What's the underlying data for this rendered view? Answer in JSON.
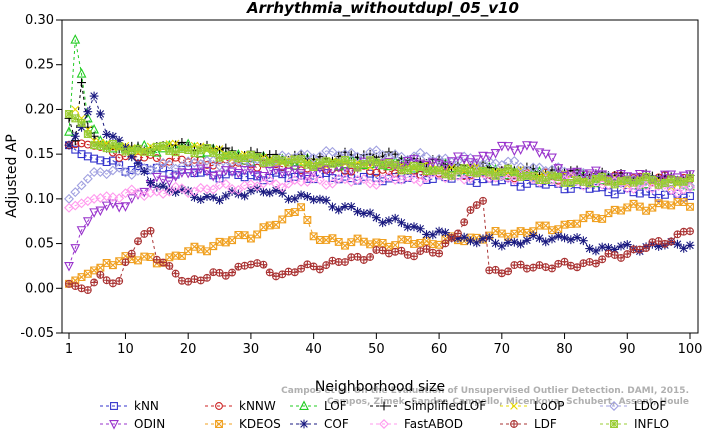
{
  "chart_data": {
    "type": "line",
    "title": "Arrhythmia_withoutdupl_05_v10",
    "xlabel": "Neighborhood size",
    "ylabel": "Adjusted AP",
    "xlim": [
      1,
      100
    ],
    "ylim": [
      -0.05,
      0.3
    ],
    "xticks": [
      "1",
      "10",
      "20",
      "30",
      "40",
      "50",
      "60",
      "70",
      "80",
      "90",
      "100"
    ],
    "yticks": [
      "-0.05",
      "0.00",
      "0.05",
      "0.10",
      "0.15",
      "0.20",
      "0.25",
      "0.30"
    ],
    "grid": false,
    "legend_position": "bottom",
    "watermark": [
      "Campos et al. On the Evaluation of Unsupervised Outlier Detection. DAMI, 2015.",
      "Campos, Zimek, Sander, Campello, Micenkova, Schubert, Assent, Houle"
    ],
    "series": [
      {
        "name": "kNN",
        "color": "#3333cc",
        "marker": "square",
        "dash": true,
        "points": [
          [
            1,
            0.16
          ],
          [
            3,
            0.15
          ],
          [
            5,
            0.145
          ],
          [
            10,
            0.135
          ],
          [
            20,
            0.13
          ],
          [
            30,
            0.125
          ],
          [
            40,
            0.125
          ],
          [
            50,
            0.123
          ],
          [
            60,
            0.125
          ],
          [
            70,
            0.12
          ],
          [
            80,
            0.115
          ],
          [
            90,
            0.108
          ],
          [
            100,
            0.103
          ]
        ]
      },
      {
        "name": "kNNW",
        "color": "#cc2222",
        "marker": "circle",
        "dash": true,
        "points": [
          [
            1,
            0.16
          ],
          [
            3,
            0.162
          ],
          [
            6,
            0.158
          ],
          [
            10,
            0.148
          ],
          [
            20,
            0.142
          ],
          [
            30,
            0.14
          ],
          [
            40,
            0.135
          ],
          [
            50,
            0.132
          ],
          [
            60,
            0.13
          ],
          [
            70,
            0.128
          ],
          [
            80,
            0.125
          ],
          [
            90,
            0.123
          ],
          [
            100,
            0.122
          ]
        ]
      },
      {
        "name": "LOF",
        "color": "#22cc22",
        "marker": "triangle-up",
        "dash": true,
        "points": [
          [
            1,
            0.175
          ],
          [
            2,
            0.278
          ],
          [
            3,
            0.24
          ],
          [
            4,
            0.19
          ],
          [
            6,
            0.165
          ],
          [
            10,
            0.155
          ],
          [
            20,
            0.158
          ],
          [
            30,
            0.145
          ],
          [
            40,
            0.14
          ],
          [
            50,
            0.14
          ],
          [
            60,
            0.135
          ],
          [
            70,
            0.13
          ],
          [
            80,
            0.125
          ],
          [
            90,
            0.12
          ],
          [
            100,
            0.118
          ]
        ]
      },
      {
        "name": "SimplifiedLOF",
        "color": "#000000",
        "marker": "plus",
        "dash": true,
        "points": [
          [
            1,
            0.19
          ],
          [
            2,
            0.165
          ],
          [
            3,
            0.23
          ],
          [
            4,
            0.18
          ],
          [
            6,
            0.16
          ],
          [
            10,
            0.155
          ],
          [
            20,
            0.16
          ],
          [
            30,
            0.15
          ],
          [
            40,
            0.145
          ],
          [
            50,
            0.15
          ],
          [
            60,
            0.14
          ],
          [
            70,
            0.133
          ],
          [
            80,
            0.13
          ],
          [
            90,
            0.125
          ],
          [
            100,
            0.123
          ]
        ]
      },
      {
        "name": "LoOP",
        "color": "#e6d800",
        "marker": "x",
        "dash": true,
        "points": [
          [
            1,
            0.195
          ],
          [
            2,
            0.2
          ],
          [
            3,
            0.19
          ],
          [
            5,
            0.165
          ],
          [
            10,
            0.155
          ],
          [
            20,
            0.16
          ],
          [
            30,
            0.145
          ],
          [
            40,
            0.14
          ],
          [
            50,
            0.14
          ],
          [
            60,
            0.135
          ],
          [
            70,
            0.13
          ],
          [
            80,
            0.125
          ],
          [
            90,
            0.12
          ],
          [
            100,
            0.117
          ]
        ]
      },
      {
        "name": "LDOF",
        "color": "#a0a0e0",
        "marker": "diamond",
        "dash": true,
        "points": [
          [
            1,
            0.1
          ],
          [
            3,
            0.115
          ],
          [
            5,
            0.13
          ],
          [
            10,
            0.13
          ],
          [
            20,
            0.14
          ],
          [
            30,
            0.14
          ],
          [
            40,
            0.15
          ],
          [
            50,
            0.15
          ],
          [
            60,
            0.145
          ],
          [
            70,
            0.14
          ],
          [
            80,
            0.13
          ],
          [
            90,
            0.12
          ],
          [
            100,
            0.115
          ]
        ]
      },
      {
        "name": "ODIN",
        "color": "#9933cc",
        "marker": "triangle-down",
        "dash": true,
        "points": [
          [
            1,
            0.025
          ],
          [
            3,
            0.065
          ],
          [
            5,
            0.085
          ],
          [
            10,
            0.095
          ],
          [
            15,
            0.12
          ],
          [
            20,
            0.13
          ],
          [
            30,
            0.13
          ],
          [
            40,
            0.13
          ],
          [
            50,
            0.14
          ],
          [
            60,
            0.14
          ],
          [
            66,
            0.145
          ],
          [
            70,
            0.155
          ],
          [
            75,
            0.16
          ],
          [
            80,
            0.13
          ],
          [
            90,
            0.125
          ],
          [
            100,
            0.125
          ]
        ]
      },
      {
        "name": "KDEOS",
        "color": "#f0a020",
        "marker": "square-x",
        "dash": true,
        "points": [
          [
            1,
            0.005
          ],
          [
            5,
            0.02
          ],
          [
            10,
            0.035
          ],
          [
            15,
            0.03
          ],
          [
            20,
            0.04
          ],
          [
            25,
            0.05
          ],
          [
            30,
            0.06
          ],
          [
            35,
            0.075
          ],
          [
            38,
            0.095
          ],
          [
            40,
            0.055
          ],
          [
            50,
            0.05
          ],
          [
            60,
            0.052
          ],
          [
            70,
            0.06
          ],
          [
            80,
            0.07
          ],
          [
            90,
            0.09
          ],
          [
            100,
            0.095
          ]
        ]
      },
      {
        "name": "COF",
        "color": "#1a1a80",
        "marker": "star",
        "dash": true,
        "points": [
          [
            1,
            0.16
          ],
          [
            3,
            0.18
          ],
          [
            5,
            0.215
          ],
          [
            7,
            0.175
          ],
          [
            10,
            0.16
          ],
          [
            12,
            0.135
          ],
          [
            15,
            0.115
          ],
          [
            20,
            0.105
          ],
          [
            25,
            0.1
          ],
          [
            30,
            0.11
          ],
          [
            35,
            0.105
          ],
          [
            40,
            0.1
          ],
          [
            45,
            0.09
          ],
          [
            50,
            0.08
          ],
          [
            55,
            0.07
          ],
          [
            60,
            0.06
          ],
          [
            70,
            0.05
          ],
          [
            80,
            0.058
          ],
          [
            85,
            0.045
          ],
          [
            90,
            0.045
          ],
          [
            100,
            0.05
          ]
        ]
      },
      {
        "name": "FastABOD",
        "color": "#ff99ee",
        "marker": "diamond",
        "dash": true,
        "points": [
          [
            1,
            0.09
          ],
          [
            3,
            0.095
          ],
          [
            5,
            0.1
          ],
          [
            10,
            0.105
          ],
          [
            20,
            0.11
          ],
          [
            30,
            0.115
          ],
          [
            40,
            0.12
          ],
          [
            50,
            0.12
          ],
          [
            60,
            0.125
          ],
          [
            70,
            0.125
          ],
          [
            80,
            0.12
          ],
          [
            90,
            0.115
          ],
          [
            100,
            0.11
          ]
        ]
      },
      {
        "name": "LDF",
        "color": "#aa3333",
        "marker": "circle-plus",
        "dash": true,
        "points": [
          [
            1,
            0.005
          ],
          [
            3,
            0.0
          ],
          [
            4,
            -0.002
          ],
          [
            6,
            0.015
          ],
          [
            9,
            0.005
          ],
          [
            10,
            0.025
          ],
          [
            12,
            0.055
          ],
          [
            14,
            0.065
          ],
          [
            15,
            0.035
          ],
          [
            17,
            0.02
          ],
          [
            20,
            0.008
          ],
          [
            25,
            0.015
          ],
          [
            30,
            0.028
          ],
          [
            35,
            0.015
          ],
          [
            40,
            0.025
          ],
          [
            45,
            0.03
          ],
          [
            50,
            0.04
          ],
          [
            55,
            0.04
          ],
          [
            60,
            0.04
          ],
          [
            67,
            0.1
          ],
          [
            68,
            0.02
          ],
          [
            70,
            0.02
          ],
          [
            75,
            0.025
          ],
          [
            80,
            0.025
          ],
          [
            85,
            0.03
          ],
          [
            90,
            0.04
          ],
          [
            95,
            0.05
          ],
          [
            100,
            0.065
          ]
        ]
      },
      {
        "name": "INFLO",
        "color": "#99cc33",
        "marker": "square-star",
        "dash": true,
        "points": [
          [
            1,
            0.195
          ],
          [
            2,
            0.19
          ],
          [
            3,
            0.185
          ],
          [
            5,
            0.16
          ],
          [
            10,
            0.155
          ],
          [
            20,
            0.155
          ],
          [
            30,
            0.145
          ],
          [
            40,
            0.14
          ],
          [
            50,
            0.14
          ],
          [
            60,
            0.13
          ],
          [
            70,
            0.13
          ],
          [
            80,
            0.12
          ],
          [
            90,
            0.12
          ],
          [
            100,
            0.12
          ]
        ]
      }
    ]
  }
}
